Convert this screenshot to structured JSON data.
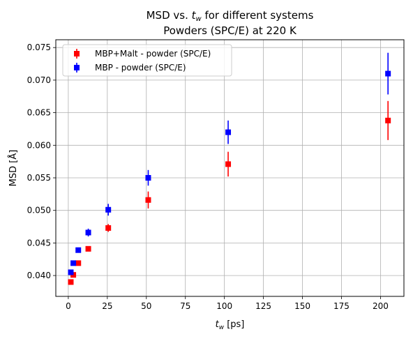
{
  "chart_data": {
    "type": "scatter",
    "title_line1_prefix": "MSD vs. ",
    "title_line1_var": "t",
    "title_line1_sub": "w",
    "title_line1_suffix": " for different systems",
    "title_line2": "Powders (SPC/E) at 220 K",
    "xlabel_var": "t",
    "xlabel_sub": "w",
    "xlabel_suffix": " [ps]",
    "ylabel": "MSD [Å]",
    "xlim": [
      -8,
      215
    ],
    "ylim": [
      0.0368,
      0.0762
    ],
    "x_ticks": [
      0,
      25,
      50,
      75,
      100,
      125,
      150,
      175,
      200
    ],
    "y_ticks": [
      0.04,
      0.045,
      0.05,
      0.055,
      0.06,
      0.065,
      0.07,
      0.075
    ],
    "y_tick_labels": [
      "0.040",
      "0.045",
      "0.050",
      "0.055",
      "0.060",
      "0.065",
      "0.070",
      "0.075"
    ],
    "grid": true,
    "legend_position": "upper-left",
    "series": [
      {
        "name": "MBP+Malt - powder (SPC/E)",
        "color": "#ff0000",
        "points": [
          {
            "x": 1.6,
            "y": 0.039,
            "err": 0.0003
          },
          {
            "x": 3.2,
            "y": 0.0401,
            "err": 0.0003
          },
          {
            "x": 6.4,
            "y": 0.0419,
            "err": 0.0003
          },
          {
            "x": 12.8,
            "y": 0.0441,
            "err": 0.0003
          },
          {
            "x": 25.6,
            "y": 0.0473,
            "err": 0.0006
          },
          {
            "x": 51.2,
            "y": 0.0516,
            "err": 0.0013
          },
          {
            "x": 102.4,
            "y": 0.0571,
            "err": 0.0019
          },
          {
            "x": 204.8,
            "y": 0.0638,
            "err": 0.003
          }
        ]
      },
      {
        "name": "MBP - powder (SPC/E)",
        "color": "#0000ff",
        "points": [
          {
            "x": 1.6,
            "y": 0.0405,
            "err": 0.0003
          },
          {
            "x": 3.2,
            "y": 0.0419,
            "err": 0.0003
          },
          {
            "x": 6.4,
            "y": 0.0439,
            "err": 0.0004
          },
          {
            "x": 12.8,
            "y": 0.0466,
            "err": 0.0006
          },
          {
            "x": 25.6,
            "y": 0.0501,
            "err": 0.0009
          },
          {
            "x": 51.2,
            "y": 0.055,
            "err": 0.0012
          },
          {
            "x": 102.4,
            "y": 0.062,
            "err": 0.0018
          },
          {
            "x": 204.8,
            "y": 0.071,
            "err": 0.0032
          }
        ]
      }
    ]
  }
}
